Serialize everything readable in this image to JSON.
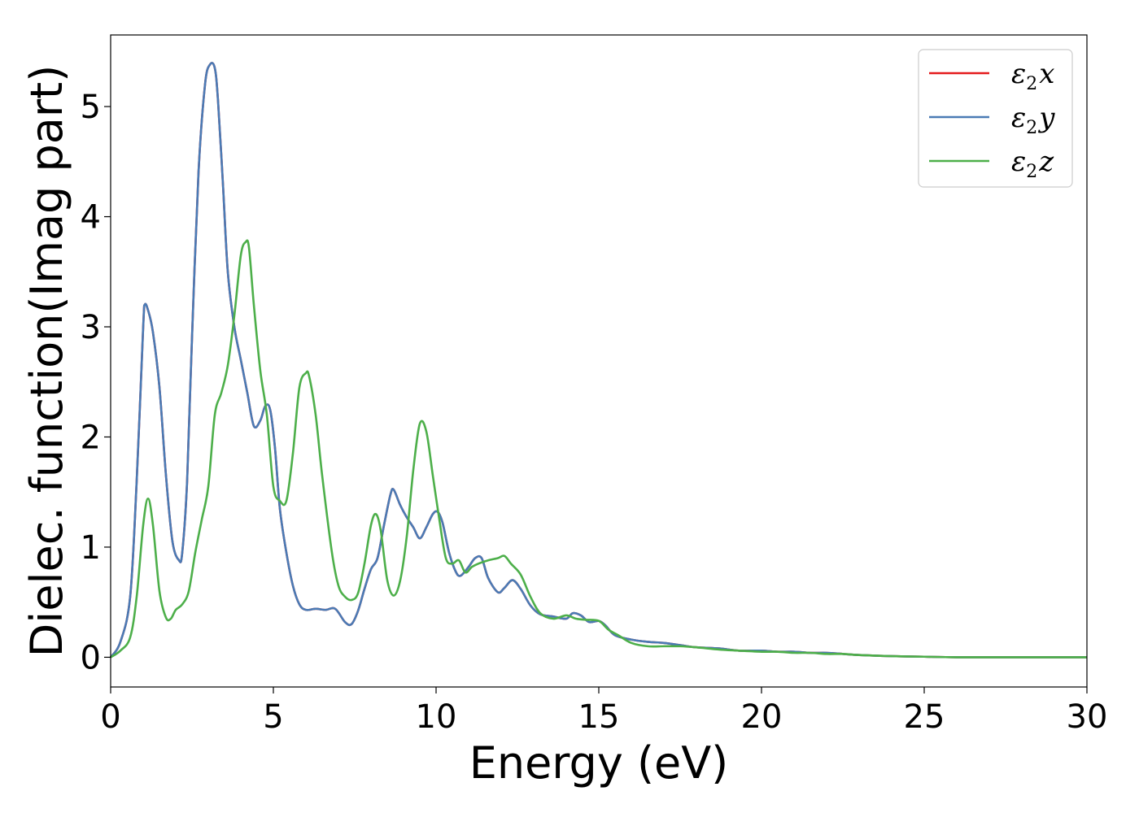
{
  "chart_data": {
    "type": "line",
    "xlabel": "Energy (eV)",
    "ylabel": "Dielec. function(Imag part)",
    "xlim": [
      0,
      30
    ],
    "ylim": [
      -0.27,
      5.65
    ],
    "xticks": [
      0,
      5,
      10,
      15,
      20,
      25,
      30
    ],
    "yticks": [
      0,
      1,
      2,
      3,
      4,
      5
    ],
    "grid": false,
    "legend_position": "top-right",
    "series": [
      {
        "name": "ε2x",
        "legend_symbol": "ε",
        "legend_sub": "2",
        "legend_var": "x",
        "color": "#e41a1c",
        "x": [
          0,
          0.3,
          0.6,
          0.8,
          1.0,
          1.05,
          1.15,
          1.3,
          1.5,
          1.7,
          1.9,
          2.1,
          2.2,
          2.35,
          2.5,
          2.7,
          2.9,
          3.05,
          3.2,
          3.3,
          3.45,
          3.6,
          3.8,
          4.0,
          4.2,
          4.4,
          4.6,
          4.75,
          4.9,
          5.05,
          5.2,
          5.4,
          5.6,
          5.8,
          6.0,
          6.3,
          6.6,
          6.9,
          7.2,
          7.4,
          7.6,
          7.8,
          8.0,
          8.2,
          8.4,
          8.6,
          8.7,
          8.9,
          9.1,
          9.3,
          9.5,
          9.7,
          9.9,
          10.05,
          10.2,
          10.4,
          10.6,
          10.75,
          11.0,
          11.2,
          11.4,
          11.6,
          11.9,
          12.1,
          12.35,
          12.6,
          12.9,
          13.2,
          13.6,
          14.0,
          14.2,
          14.45,
          14.7,
          15.0,
          15.2,
          15.5,
          16.0,
          16.5,
          17.0,
          17.5,
          18.0,
          18.7,
          19.3,
          20.0,
          20.5,
          21.0,
          21.5,
          22.0,
          22.5,
          23.0,
          24.0,
          25.0,
          26.0,
          28.0,
          30.0
        ],
        "y": [
          0,
          0.14,
          0.55,
          1.6,
          3.0,
          3.2,
          3.15,
          2.95,
          2.45,
          1.65,
          1.05,
          0.88,
          0.95,
          1.6,
          2.9,
          4.4,
          5.2,
          5.38,
          5.35,
          5.05,
          4.3,
          3.5,
          3.0,
          2.7,
          2.4,
          2.1,
          2.15,
          2.28,
          2.25,
          1.9,
          1.35,
          0.95,
          0.65,
          0.48,
          0.43,
          0.44,
          0.43,
          0.44,
          0.32,
          0.3,
          0.42,
          0.62,
          0.8,
          0.9,
          1.2,
          1.48,
          1.52,
          1.38,
          1.27,
          1.18,
          1.08,
          1.18,
          1.3,
          1.32,
          1.22,
          0.95,
          0.78,
          0.74,
          0.82,
          0.9,
          0.9,
          0.72,
          0.59,
          0.63,
          0.7,
          0.62,
          0.47,
          0.39,
          0.37,
          0.35,
          0.4,
          0.38,
          0.32,
          0.33,
          0.29,
          0.2,
          0.16,
          0.14,
          0.13,
          0.11,
          0.09,
          0.08,
          0.06,
          0.06,
          0.05,
          0.05,
          0.04,
          0.04,
          0.03,
          0.02,
          0.01,
          0.005,
          0,
          0,
          0
        ]
      },
      {
        "name": "ε2y",
        "legend_symbol": "ε",
        "legend_sub": "2",
        "legend_var": "y",
        "color": "#4a7bb5",
        "x": [
          0,
          0.3,
          0.6,
          0.8,
          1.0,
          1.05,
          1.15,
          1.3,
          1.5,
          1.7,
          1.9,
          2.1,
          2.2,
          2.35,
          2.5,
          2.7,
          2.9,
          3.05,
          3.2,
          3.3,
          3.45,
          3.6,
          3.8,
          4.0,
          4.2,
          4.4,
          4.6,
          4.75,
          4.9,
          5.05,
          5.2,
          5.4,
          5.6,
          5.8,
          6.0,
          6.3,
          6.6,
          6.9,
          7.2,
          7.4,
          7.6,
          7.8,
          8.0,
          8.2,
          8.4,
          8.6,
          8.7,
          8.9,
          9.1,
          9.3,
          9.5,
          9.7,
          9.9,
          10.05,
          10.2,
          10.4,
          10.6,
          10.75,
          11.0,
          11.2,
          11.4,
          11.6,
          11.9,
          12.1,
          12.35,
          12.6,
          12.9,
          13.2,
          13.6,
          14.0,
          14.2,
          14.45,
          14.7,
          15.0,
          15.2,
          15.5,
          16.0,
          16.5,
          17.0,
          17.5,
          18.0,
          18.7,
          19.3,
          20.0,
          20.5,
          21.0,
          21.5,
          22.0,
          22.5,
          23.0,
          24.0,
          25.0,
          26.0,
          28.0,
          30.0
        ],
        "y": [
          0,
          0.14,
          0.55,
          1.6,
          3.0,
          3.2,
          3.15,
          2.95,
          2.45,
          1.65,
          1.05,
          0.88,
          0.95,
          1.6,
          2.9,
          4.4,
          5.2,
          5.38,
          5.35,
          5.05,
          4.3,
          3.5,
          3.0,
          2.7,
          2.4,
          2.1,
          2.15,
          2.28,
          2.25,
          1.9,
          1.35,
          0.95,
          0.65,
          0.48,
          0.43,
          0.44,
          0.43,
          0.44,
          0.32,
          0.3,
          0.42,
          0.62,
          0.8,
          0.9,
          1.2,
          1.48,
          1.52,
          1.38,
          1.27,
          1.18,
          1.08,
          1.18,
          1.3,
          1.32,
          1.22,
          0.95,
          0.78,
          0.74,
          0.82,
          0.9,
          0.9,
          0.72,
          0.59,
          0.63,
          0.7,
          0.62,
          0.47,
          0.39,
          0.37,
          0.35,
          0.4,
          0.38,
          0.32,
          0.33,
          0.29,
          0.2,
          0.16,
          0.14,
          0.13,
          0.11,
          0.09,
          0.08,
          0.06,
          0.06,
          0.05,
          0.05,
          0.04,
          0.04,
          0.03,
          0.02,
          0.01,
          0.005,
          0,
          0,
          0
        ]
      },
      {
        "name": "ε2z",
        "legend_symbol": "ε",
        "legend_sub": "2",
        "legend_var": "z",
        "color": "#4daf4a",
        "x": [
          0,
          0.3,
          0.6,
          0.8,
          1.0,
          1.15,
          1.3,
          1.5,
          1.7,
          1.85,
          2.0,
          2.2,
          2.4,
          2.6,
          2.8,
          3.0,
          3.2,
          3.4,
          3.6,
          3.8,
          4.0,
          4.15,
          4.25,
          4.4,
          4.6,
          4.8,
          5.0,
          5.2,
          5.4,
          5.6,
          5.8,
          6.0,
          6.1,
          6.3,
          6.5,
          6.8,
          7.0,
          7.2,
          7.4,
          7.6,
          7.8,
          8.0,
          8.15,
          8.3,
          8.5,
          8.7,
          8.9,
          9.1,
          9.3,
          9.5,
          9.7,
          9.9,
          10.1,
          10.3,
          10.5,
          10.7,
          10.9,
          11.1,
          11.3,
          11.6,
          11.9,
          12.1,
          12.3,
          12.6,
          12.9,
          13.2,
          13.6,
          14.0,
          14.3,
          14.6,
          15.0,
          15.3,
          15.6,
          16.0,
          16.5,
          17.0,
          17.5,
          18.0,
          18.7,
          19.3,
          20.0,
          20.5,
          21.0,
          21.5,
          22.0,
          22.5,
          23.0,
          24.0,
          25.0,
          26.0,
          28.0,
          30.0
        ],
        "y": [
          0,
          0.06,
          0.18,
          0.55,
          1.2,
          1.44,
          1.2,
          0.6,
          0.36,
          0.35,
          0.43,
          0.48,
          0.6,
          0.95,
          1.25,
          1.55,
          2.2,
          2.4,
          2.65,
          3.1,
          3.65,
          3.77,
          3.72,
          3.2,
          2.6,
          2.2,
          1.55,
          1.42,
          1.42,
          1.85,
          2.45,
          2.58,
          2.55,
          2.2,
          1.65,
          0.95,
          0.65,
          0.55,
          0.52,
          0.58,
          0.85,
          1.2,
          1.3,
          1.15,
          0.7,
          0.56,
          0.7,
          1.1,
          1.7,
          2.12,
          2.05,
          1.65,
          1.25,
          0.9,
          0.85,
          0.88,
          0.77,
          0.82,
          0.85,
          0.88,
          0.9,
          0.92,
          0.85,
          0.75,
          0.55,
          0.4,
          0.35,
          0.38,
          0.35,
          0.34,
          0.33,
          0.25,
          0.2,
          0.13,
          0.1,
          0.1,
          0.1,
          0.09,
          0.07,
          0.06,
          0.05,
          0.05,
          0.04,
          0.04,
          0.03,
          0.03,
          0.02,
          0.01,
          0.005,
          0,
          0,
          0
        ]
      }
    ]
  }
}
